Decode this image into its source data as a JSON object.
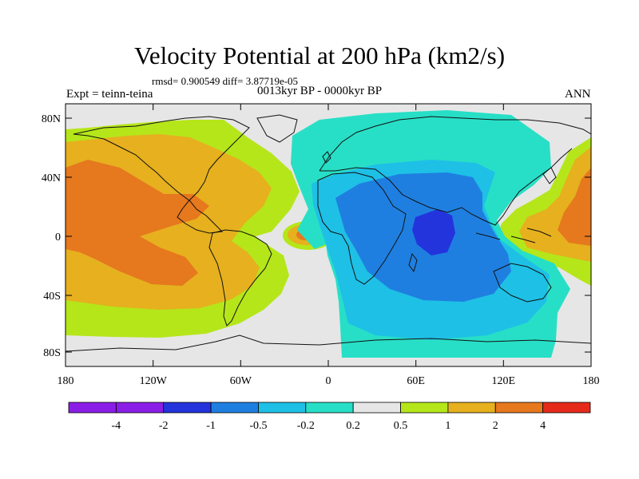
{
  "header": {
    "title": "Velocity Potential at 200 hPa (km2/s)",
    "stats": "rmsd= 0.900549 diff= 3.87719e-05",
    "experiment": "Expt = teinn-teina",
    "period": "0013kyr BP - 0000kyr BP",
    "season": "ANN"
  },
  "map": {
    "projection": "cylindrical equidistant",
    "lon_range": [
      -180,
      180
    ],
    "lat_range": [
      -90,
      90
    ],
    "y_ticks": [
      "80N",
      "40N",
      "0",
      "40S",
      "80S"
    ],
    "x_ticks": [
      "180",
      "120W",
      "60W",
      "0",
      "60E",
      "120E",
      "180"
    ]
  },
  "colorbar": {
    "labels": [
      "-4",
      "-2",
      "-1",
      "-0.5",
      "-0.2",
      "0.2",
      "0.5",
      "1",
      "2",
      "4"
    ],
    "colors": [
      "#8a1ee6",
      "#2334dc",
      "#1f7fe0",
      "#1ec0e6",
      "#27dfc6",
      "#e6e6e6",
      "#b5e61a",
      "#e6b01e",
      "#e6781e",
      "#e62a1a"
    ]
  }
}
